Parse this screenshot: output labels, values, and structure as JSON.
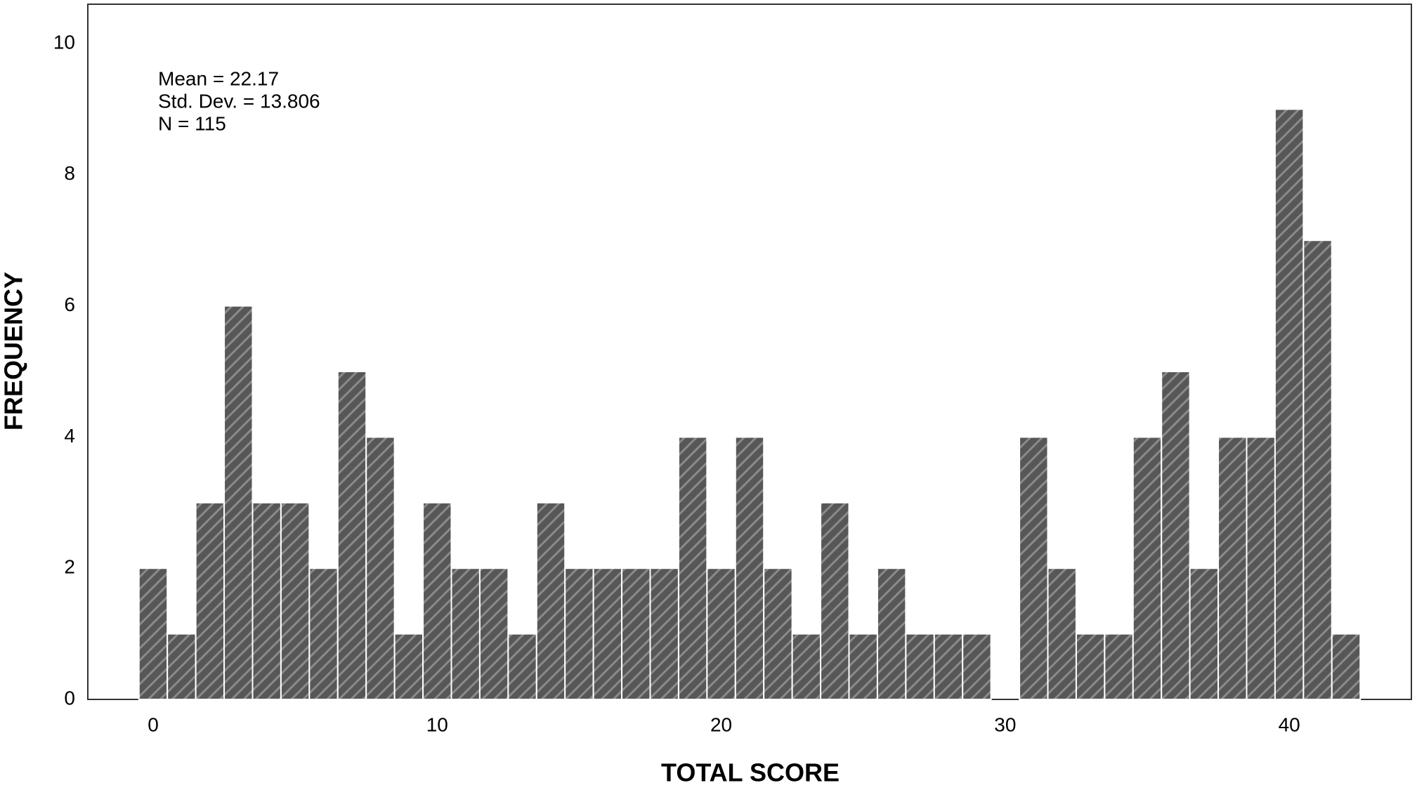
{
  "chart_data": {
    "type": "histogram",
    "x_label": "TOTAL SCORE",
    "y_label": "FREQUENCY",
    "annotations": [
      "Mean = 22.17",
      "Std. Dev. = 13.806",
      "N = 115"
    ],
    "bins": [
      -0.5,
      0.5,
      1.5,
      2.5,
      3.5,
      4.5,
      5.5,
      6.5,
      7.5,
      8.5,
      9.5,
      10.5,
      11.5,
      12.5,
      13.5,
      14.5,
      15.5,
      16.5,
      17.5,
      18.5,
      19.5,
      20.5,
      21.5,
      22.5,
      23.5,
      24.5,
      25.5,
      26.5,
      27.5,
      28.5,
      29.5,
      30.5,
      31.5,
      32.5,
      33.5,
      34.5,
      35.5,
      36.5,
      37.5,
      38.5,
      39.5,
      40.5,
      41.5,
      42.5
    ],
    "values": [
      2,
      1,
      3,
      6,
      3,
      3,
      2,
      5,
      4,
      1,
      3,
      2,
      2,
      1,
      3,
      2,
      2,
      2,
      2,
      4,
      2,
      4,
      2,
      1,
      3,
      1,
      2,
      1,
      1,
      1,
      0,
      4,
      2,
      1,
      1,
      4,
      5,
      2,
      4,
      4,
      9,
      7,
      1
    ],
    "color": "#575757",
    "xlim": [
      -2.3,
      44.3
    ],
    "ylim": [
      0,
      10.6
    ],
    "xticks": [
      0,
      10,
      20,
      30,
      40
    ],
    "yticks": [
      0,
      2,
      4,
      6,
      8,
      10
    ],
    "grid": false
  }
}
